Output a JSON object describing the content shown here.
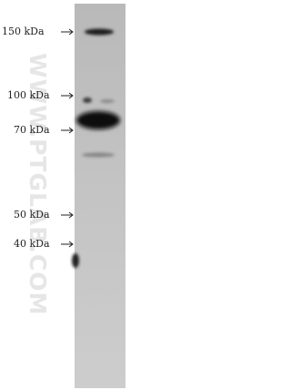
{
  "markers": [
    "150 kDa",
    "100 kDa",
    "70 kDa",
    "50 kDa",
    "40 kDa"
  ],
  "watermark": "WWW.PTGLAB.COM"
}
